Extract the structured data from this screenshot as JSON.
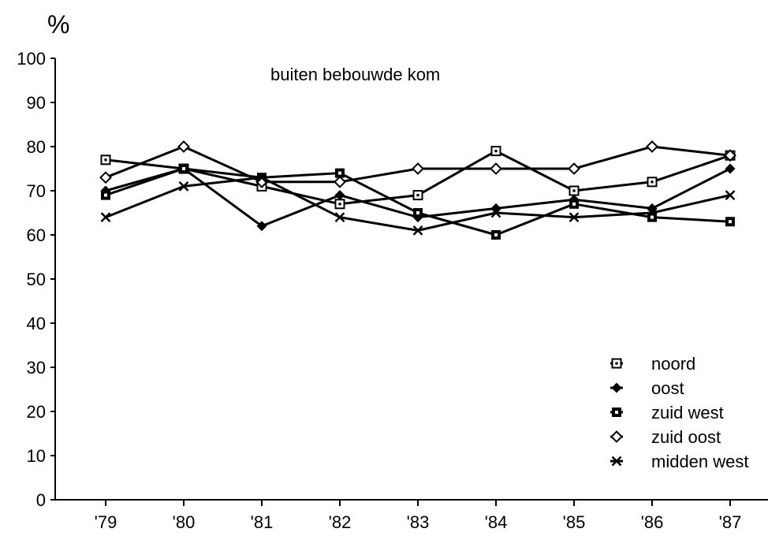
{
  "chart_data": {
    "type": "line",
    "title": "buiten bebouwde kom",
    "y_unit": "%",
    "xlabel": "",
    "ylabel": "%",
    "categories": [
      "'79",
      "'80",
      "'81",
      "'82",
      "'83",
      "'84",
      "'85",
      "'86",
      "'87"
    ],
    "y_ticks": [
      "0",
      "10",
      "20",
      "30",
      "40",
      "50",
      "60",
      "70",
      "80",
      "90",
      "100"
    ],
    "ylim": [
      0,
      100
    ],
    "grid": false,
    "legend_position": "bottom-right",
    "series": [
      {
        "name": "noord",
        "marker": "open-square",
        "values": [
          77,
          75,
          71,
          67,
          69,
          79,
          70,
          72,
          78
        ]
      },
      {
        "name": "oost",
        "marker": "filled-diamond",
        "values": [
          70,
          75,
          62,
          69,
          64,
          66,
          68,
          66,
          75
        ]
      },
      {
        "name": "zuid west",
        "marker": "filled-square",
        "values": [
          69,
          75,
          73,
          74,
          65,
          60,
          67,
          64,
          63
        ]
      },
      {
        "name": "zuid oost",
        "marker": "open-diamond",
        "values": [
          73,
          80,
          72,
          72,
          75,
          75,
          75,
          80,
          78
        ]
      },
      {
        "name": "midden west",
        "marker": "cross",
        "values": [
          64,
          71,
          73,
          64,
          61,
          65,
          64,
          65,
          69
        ]
      }
    ]
  }
}
